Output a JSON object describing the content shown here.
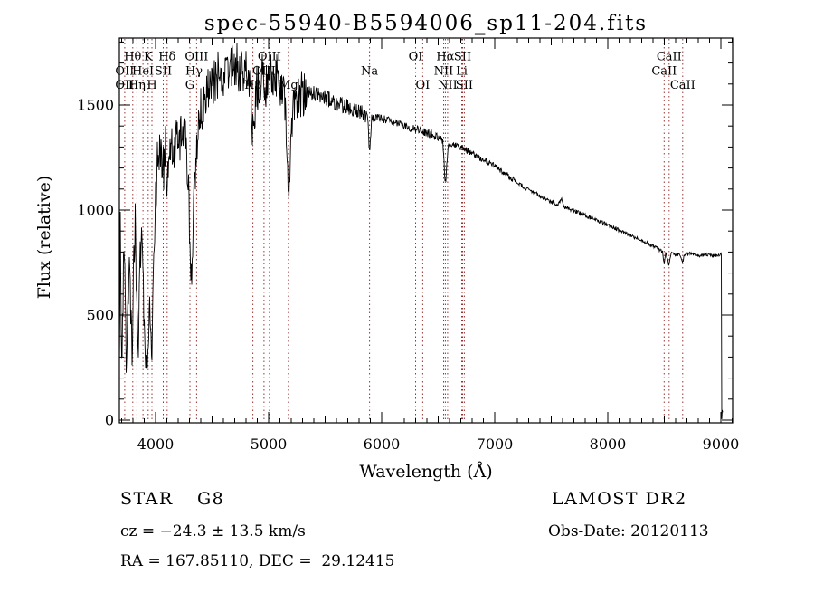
{
  "chart_data": {
    "type": "line",
    "title": "spec-55940-B5594006_sp11-204.fits",
    "xlabel": "Wavelength (Å)",
    "ylabel": "Flux (relative)",
    "xlim": [
      3680,
      9104
    ],
    "ylim": [
      0,
      1810
    ],
    "x_ticks": [
      4000,
      5000,
      6000,
      7000,
      8000,
      9000
    ],
    "y_ticks": [
      0,
      500,
      1000,
      1500
    ],
    "x_minor_tick": 100,
    "y_minor_tick": 100,
    "grid": false,
    "trace_color": "#000000",
    "marker_color": "#993333",
    "spectral_lines": [
      {
        "name": "Hθ",
        "wavelength": 3798,
        "row": 1
      },
      {
        "name": "K",
        "wavelength": 3934,
        "row": 1
      },
      {
        "name": "Hδ",
        "wavelength": 4102,
        "row": 1
      },
      {
        "name": "OIII",
        "wavelength": 4363,
        "row": 1
      },
      {
        "name": "OIII",
        "wavelength": 5007,
        "row": 1
      },
      {
        "name": "OI",
        "wavelength": 6300,
        "row": 1
      },
      {
        "name": "Hα",
        "wavelength": 6563,
        "row": 1
      },
      {
        "name": "SII",
        "wavelength": 6716,
        "row": 1
      },
      {
        "name": "CaII",
        "wavelength": 8542,
        "row": 1
      },
      {
        "name": "OII",
        "wavelength": 3727,
        "row": 2
      },
      {
        "name": "HeI",
        "wavelength": 3889,
        "row": 2
      },
      {
        "name": "SII",
        "wavelength": 4068,
        "row": 2
      },
      {
        "name": "Hγ",
        "wavelength": 4340,
        "row": 2
      },
      {
        "name": "OIII",
        "wavelength": 4959,
        "row": 2
      },
      {
        "name": "Na",
        "wavelength": 5893,
        "row": 2
      },
      {
        "name": "NII",
        "wavelength": 6548,
        "row": 2
      },
      {
        "name": "Li",
        "wavelength": 6708,
        "row": 2
      },
      {
        "name": "CaII",
        "wavelength": 8498,
        "row": 2
      },
      {
        "name": "OII",
        "wavelength": 3727,
        "row": 3
      },
      {
        "name": "Hη",
        "wavelength": 3835,
        "row": 3
      },
      {
        "name": "H",
        "wavelength": 3968,
        "row": 3
      },
      {
        "name": "G",
        "wavelength": 4304,
        "row": 3
      },
      {
        "name": "Hβ",
        "wavelength": 4861,
        "row": 3
      },
      {
        "name": "Mg",
        "wavelength": 5175,
        "row": 3
      },
      {
        "name": "OI",
        "wavelength": 6363,
        "row": 3
      },
      {
        "name": "NII",
        "wavelength": 6583,
        "row": 3
      },
      {
        "name": "SII",
        "wavelength": 6731,
        "row": 3
      },
      {
        "name": "CaII",
        "wavelength": 8662,
        "row": 3
      }
    ],
    "envelope": [
      [
        3680,
        300
      ],
      [
        3688,
        950
      ],
      [
        3696,
        520
      ],
      [
        3704,
        240
      ],
      [
        3714,
        620
      ],
      [
        3724,
        880
      ],
      [
        3734,
        430
      ],
      [
        3744,
        240
      ],
      [
        3756,
        560
      ],
      [
        3768,
        860
      ],
      [
        3780,
        560
      ],
      [
        3792,
        330
      ],
      [
        3806,
        720
      ],
      [
        3820,
        920
      ],
      [
        3834,
        480
      ],
      [
        3848,
        300
      ],
      [
        3862,
        700
      ],
      [
        3876,
        950
      ],
      [
        3890,
        620
      ],
      [
        3904,
        360
      ],
      [
        3918,
        280
      ],
      [
        3934,
        230
      ],
      [
        3946,
        560
      ],
      [
        3958,
        430
      ],
      [
        3970,
        380
      ],
      [
        3984,
        780
      ],
      [
        4000,
        1060
      ],
      [
        4020,
        1260
      ],
      [
        4045,
        1310
      ],
      [
        4070,
        1180
      ],
      [
        4090,
        1340
      ],
      [
        4102,
        980
      ],
      [
        4115,
        1290
      ],
      [
        4140,
        1340
      ],
      [
        4165,
        1260
      ],
      [
        4190,
        1390
      ],
      [
        4215,
        1330
      ],
      [
        4240,
        1400
      ],
      [
        4265,
        1340
      ],
      [
        4290,
        1100
      ],
      [
        4310,
        760
      ],
      [
        4325,
        700
      ],
      [
        4340,
        1080
      ],
      [
        4360,
        1260
      ],
      [
        4385,
        1430
      ],
      [
        4410,
        1490
      ],
      [
        4440,
        1540
      ],
      [
        4470,
        1580
      ],
      [
        4510,
        1610
      ],
      [
        4550,
        1640
      ],
      [
        4600,
        1620
      ],
      [
        4650,
        1670
      ],
      [
        4700,
        1690
      ],
      [
        4750,
        1670
      ],
      [
        4800,
        1640
      ],
      [
        4835,
        1590
      ],
      [
        4861,
        1330
      ],
      [
        4885,
        1545
      ],
      [
        4915,
        1615
      ],
      [
        4950,
        1640
      ],
      [
        4985,
        1600
      ],
      [
        5020,
        1635
      ],
      [
        5060,
        1645
      ],
      [
        5100,
        1590
      ],
      [
        5140,
        1520
      ],
      [
        5165,
        1280
      ],
      [
        5177,
        1035
      ],
      [
        5195,
        1320
      ],
      [
        5225,
        1510
      ],
      [
        5265,
        1550
      ],
      [
        5305,
        1560
      ],
      [
        5355,
        1565
      ],
      [
        5405,
        1555
      ],
      [
        5455,
        1545
      ],
      [
        5505,
        1535
      ],
      [
        5555,
        1520
      ],
      [
        5605,
        1510
      ],
      [
        5655,
        1500
      ],
      [
        5705,
        1490
      ],
      [
        5755,
        1480
      ],
      [
        5805,
        1470
      ],
      [
        5855,
        1455
      ],
      [
        5880,
        1440
      ],
      [
        5893,
        1245
      ],
      [
        5910,
        1435
      ],
      [
        5955,
        1445
      ],
      [
        6005,
        1435
      ],
      [
        6055,
        1425
      ],
      [
        6105,
        1415
      ],
      [
        6155,
        1408
      ],
      [
        6205,
        1400
      ],
      [
        6255,
        1392
      ],
      [
        6305,
        1385
      ],
      [
        6355,
        1378
      ],
      [
        6405,
        1368
      ],
      [
        6455,
        1358
      ],
      [
        6505,
        1345
      ],
      [
        6540,
        1332
      ],
      [
        6563,
        1120
      ],
      [
        6590,
        1318
      ],
      [
        6650,
        1308
      ],
      [
        6705,
        1297
      ],
      [
        6755,
        1283
      ],
      [
        6805,
        1268
      ],
      [
        6855,
        1252
      ],
      [
        6905,
        1237
      ],
      [
        6955,
        1222
      ],
      [
        7005,
        1207
      ],
      [
        7105,
        1168
      ],
      [
        7205,
        1128
      ],
      [
        7305,
        1094
      ],
      [
        7405,
        1066
      ],
      [
        7505,
        1038
      ],
      [
        7555,
        1028
      ],
      [
        7595,
        1055
      ],
      [
        7615,
        1015
      ],
      [
        7705,
        998
      ],
      [
        7805,
        974
      ],
      [
        7905,
        950
      ],
      [
        8005,
        928
      ],
      [
        8105,
        903
      ],
      [
        8205,
        878
      ],
      [
        8305,
        853
      ],
      [
        8405,
        828
      ],
      [
        8455,
        812
      ],
      [
        8485,
        800
      ],
      [
        8498,
        742
      ],
      [
        8512,
        798
      ],
      [
        8542,
        738
      ],
      [
        8560,
        792
      ],
      [
        8600,
        788
      ],
      [
        8640,
        786
      ],
      [
        8662,
        752
      ],
      [
        8680,
        788
      ],
      [
        8730,
        792
      ],
      [
        8780,
        788
      ],
      [
        8830,
        783
      ],
      [
        8880,
        788
      ],
      [
        8930,
        782
      ],
      [
        8980,
        788
      ],
      [
        9000,
        790
      ],
      [
        9004,
        786
      ],
      [
        9006,
        300
      ],
      [
        9008,
        5
      ],
      [
        9014,
        70
      ],
      [
        9018,
        5
      ]
    ],
    "noise_segments": [
      [
        3680,
        3990,
        120
      ],
      [
        3990,
        4450,
        115
      ],
      [
        4450,
        5340,
        120
      ],
      [
        5340,
        5900,
        38
      ],
      [
        5900,
        6600,
        20
      ],
      [
        6600,
        7200,
        14
      ],
      [
        7200,
        8100,
        10
      ],
      [
        8100,
        9004,
        8
      ],
      [
        9004,
        9020,
        0
      ]
    ],
    "noise_seed": 20120113
  },
  "annotations": {
    "object_class": "STAR",
    "subclass": "G8",
    "survey": "LAMOST DR2",
    "cz": "cz = −24.3 ± 13.5 km/s",
    "obs_date": "Obs-Date: 20120113",
    "radec": "RA = 167.85110, DEC =  29.12415"
  }
}
